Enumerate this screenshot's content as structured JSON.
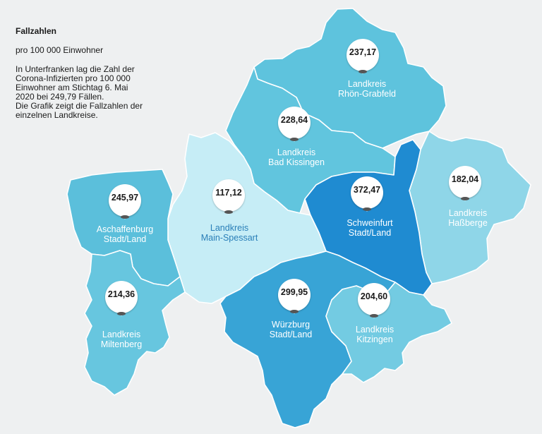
{
  "info": {
    "title": "Fallzahlen",
    "subtitle": "pro 100 000 Einwohner",
    "description": "In Unterfranken lag die Zahl der\nCorona-Infizierten pro 100 000\nEinwohner am Stichtag 6. Mai\n2020 bei 249,79 Fällen.\nDie Grafik zeigt die Fallzahlen der\neinzelnen Landkreise."
  },
  "regions": [
    {
      "id": "rhoen-grabfeld",
      "name": "Landkreis\nRhön-Grabfeld",
      "value": "237,17",
      "color": "#5ec3dd"
    },
    {
      "id": "bad-kissingen",
      "name": "Landkreis\nBad Kissingen",
      "value": "228,64",
      "color": "#61c5de"
    },
    {
      "id": "hassberge",
      "name": "Landkreis\nHaßberge",
      "value": "182,04",
      "color": "#8fd6e8"
    },
    {
      "id": "schweinfurt",
      "name": "Schweinfurt\nStadt/Land",
      "value": "372,47",
      "color": "#1f8bd1"
    },
    {
      "id": "main-spessart",
      "name": "Landkreis\nMain-Spessart",
      "value": "117,12",
      "color": "#c6edf6"
    },
    {
      "id": "aschaffenburg",
      "name": "Aschaffenburg\nStadt/Land",
      "value": "245,97",
      "color": "#5bbfdb"
    },
    {
      "id": "miltenberg",
      "name": "Landkreis\nMiltenberg",
      "value": "214,36",
      "color": "#67c6df"
    },
    {
      "id": "wuerzburg",
      "name": "Würzburg\nStadt/Land",
      "value": "299,95",
      "color": "#38a4d6"
    },
    {
      "id": "kitzingen",
      "name": "Landkreis\nKitzingen",
      "value": "204,60",
      "color": "#73cbe2"
    }
  ]
}
